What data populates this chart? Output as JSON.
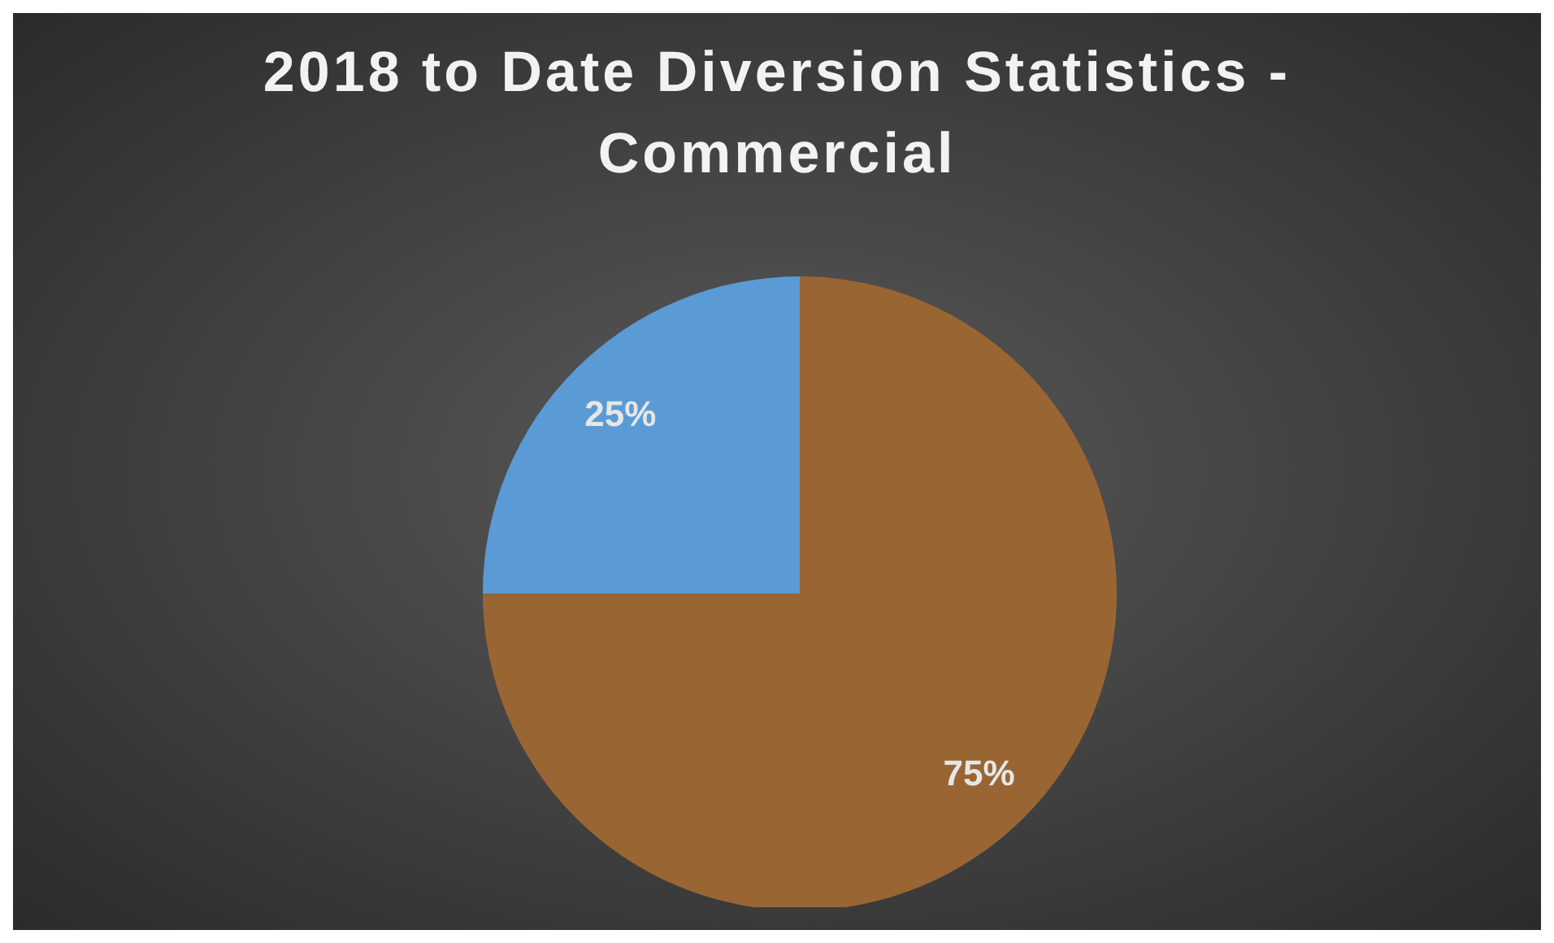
{
  "chart_data": {
    "type": "pie",
    "title": "2018 to Date Diversion Statistics - Commercial",
    "categories": [
      null,
      null
    ],
    "values": [
      75,
      25
    ],
    "colors": [
      "#996633",
      "#5b9bd5"
    ],
    "value_labels": [
      "75%",
      "25%"
    ],
    "legend": false
  }
}
